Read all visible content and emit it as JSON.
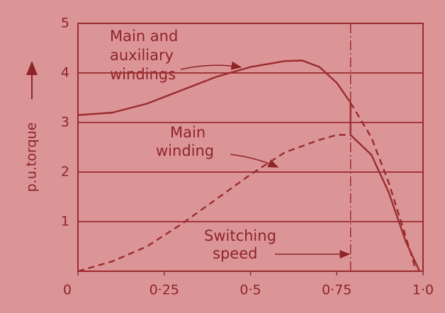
{
  "chart_data": {
    "type": "line",
    "ylabel": "p.u.torque",
    "xlim": [
      0,
      1.0
    ],
    "ylim": [
      0,
      5
    ],
    "xticks": [
      0,
      {
        "value": 0.25,
        "label": "0·25"
      },
      {
        "value": 0.5,
        "label": "0·5"
      },
      {
        "value": 0.75,
        "label": "0·75"
      },
      {
        "value": 1.0,
        "label": "1·0"
      }
    ],
    "yticks": [
      1,
      2,
      3,
      4,
      5
    ],
    "grid": true,
    "color": "#9a2b2e",
    "switching_speed": 0.79,
    "series": [
      {
        "style": "solid",
        "x": [
          0,
          0.1,
          0.2,
          0.3,
          0.4,
          0.5,
          0.6,
          0.65,
          0.7,
          0.75,
          0.79
        ],
        "values": [
          3.15,
          3.2,
          3.38,
          3.65,
          3.92,
          4.12,
          4.24,
          4.25,
          4.12,
          3.8,
          3.4
        ]
      },
      {
        "style": "dashed",
        "x": [
          0.79,
          0.85,
          0.9,
          0.95,
          0.98
        ],
        "values": [
          3.4,
          2.7,
          1.8,
          0.7,
          0
        ]
      },
      {
        "style": "dashed",
        "x": [
          0,
          0.1,
          0.2,
          0.3,
          0.4,
          0.5,
          0.6,
          0.7,
          0.75,
          0.79
        ],
        "values": [
          0,
          0.2,
          0.5,
          0.95,
          1.45,
          1.95,
          2.4,
          2.65,
          2.75,
          2.75
        ]
      },
      {
        "style": "solid",
        "x": [
          0.79,
          0.79,
          0.85,
          0.9,
          0.95,
          0.99
        ],
        "values": [
          3.4,
          2.75,
          2.35,
          1.6,
          0.6,
          0
        ]
      }
    ],
    "annotations": [
      {
        "lines": [
          "Main and",
          "auxiliary",
          "windings"
        ]
      },
      {
        "lines": [
          "Main",
          "winding"
        ]
      },
      {
        "lines": [
          "Switching",
          "speed"
        ]
      }
    ]
  }
}
